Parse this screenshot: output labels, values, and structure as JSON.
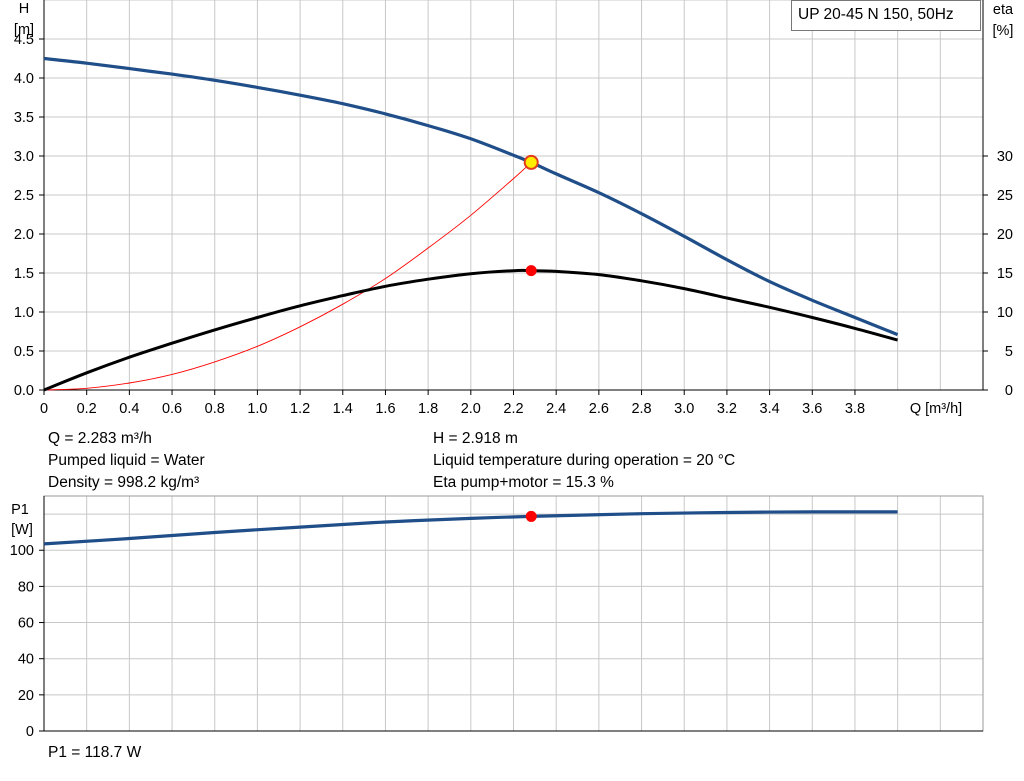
{
  "chart_data": [
    {
      "type": "line",
      "title": "UP 20-45 N 150, 50Hz",
      "xlabel": "Q [m³/h]",
      "ylabel": [
        "H",
        "[m]"
      ],
      "y2label": [
        "eta",
        "[%]"
      ],
      "xlim": [
        0,
        4.4
      ],
      "ylim": [
        0,
        5.0
      ],
      "y2lim": [
        0,
        50
      ],
      "x_ticks": [
        "0",
        "0.2",
        "0.4",
        "0.6",
        "0.8",
        "1.0",
        "1.2",
        "1.4",
        "1.6",
        "1.8",
        "2.0",
        "2.2",
        "2.4",
        "2.6",
        "2.8",
        "3.0",
        "3.2",
        "3.4",
        "3.6",
        "3.8"
      ],
      "y_ticks": [
        "0.0",
        "0.5",
        "1.0",
        "1.5",
        "2.0",
        "2.5",
        "3.0",
        "3.5",
        "4.0",
        "4.5"
      ],
      "y2_ticks": [
        "0",
        "5",
        "10",
        "15",
        "20",
        "25",
        "30"
      ],
      "grid": true,
      "series": [
        {
          "name": "H",
          "color": "#1f4e89",
          "x": [
            0,
            0.2,
            0.4,
            0.6,
            0.8,
            1.0,
            1.2,
            1.4,
            1.6,
            1.8,
            2.0,
            2.2,
            2.283,
            2.4,
            2.6,
            2.8,
            3.0,
            3.2,
            3.4,
            3.6,
            3.8,
            4.0
          ],
          "y": [
            4.25,
            4.19,
            4.12,
            4.05,
            3.97,
            3.88,
            3.78,
            3.67,
            3.54,
            3.39,
            3.22,
            3.01,
            2.918,
            2.77,
            2.53,
            2.26,
            1.97,
            1.67,
            1.39,
            1.15,
            0.93,
            0.71
          ]
        },
        {
          "name": "eta",
          "axis": "y2",
          "color": "#000000",
          "x": [
            0,
            0.2,
            0.4,
            0.6,
            0.8,
            1.0,
            1.2,
            1.4,
            1.6,
            1.8,
            2.0,
            2.2,
            2.283,
            2.4,
            2.6,
            2.8,
            3.0,
            3.2,
            3.4,
            3.6,
            3.8,
            4.0
          ],
          "y": [
            0,
            2.2,
            4.2,
            6.0,
            7.7,
            9.3,
            10.8,
            12.1,
            13.3,
            14.2,
            14.9,
            15.3,
            15.3,
            15.2,
            14.8,
            14.0,
            13.0,
            11.8,
            10.6,
            9.3,
            7.9,
            6.4
          ]
        },
        {
          "name": "system curve",
          "color": "#ff0000",
          "x": [
            0,
            0.2,
            0.4,
            0.6,
            0.8,
            1.0,
            1.2,
            1.4,
            1.6,
            1.8,
            2.0,
            2.2,
            2.283
          ],
          "y": [
            0,
            0.022,
            0.09,
            0.2,
            0.36,
            0.56,
            0.81,
            1.1,
            1.43,
            1.82,
            2.24,
            2.71,
            2.918
          ]
        }
      ],
      "duty_point": {
        "x": 2.283,
        "y": 2.918,
        "eta": 15.3
      }
    },
    {
      "type": "line",
      "xlabel": "",
      "ylabel": [
        "P1",
        "[W]"
      ],
      "xlim": [
        0,
        4.4
      ],
      "ylim": [
        0,
        130
      ],
      "y_ticks": [
        "0",
        "20",
        "40",
        "60",
        "80",
        "100"
      ],
      "grid": true,
      "series": [
        {
          "name": "P1",
          "color": "#1f4e89",
          "x": [
            0,
            0.4,
            0.8,
            1.2,
            1.6,
            2.0,
            2.283,
            2.8,
            3.2,
            3.6,
            4.0
          ],
          "y": [
            103.5,
            106.5,
            109.8,
            112.8,
            115.6,
            117.6,
            118.7,
            120.2,
            120.9,
            121.2,
            121.2
          ]
        }
      ],
      "duty_point": {
        "x": 2.283,
        "y": 118.7
      }
    }
  ],
  "info": {
    "q": "Q = 2.283 m³/h",
    "pumped_liquid": "Pumped liquid = Water",
    "density": "Density = 998.2 kg/m³",
    "h": "H = 2.918 m",
    "liquid_temp": "Liquid temperature during operation = 20 °C",
    "eta": "Eta pump+motor = 15.3 %",
    "p1": "P1 = 118.7 W"
  },
  "colors": {
    "h_curve": "#1f4e89",
    "eta_curve": "#000000",
    "system_curve": "#ff0000",
    "duty_point": "#ff0000",
    "duty_point_h_fill": "#ffee00",
    "grid": "#c8c8c8"
  }
}
